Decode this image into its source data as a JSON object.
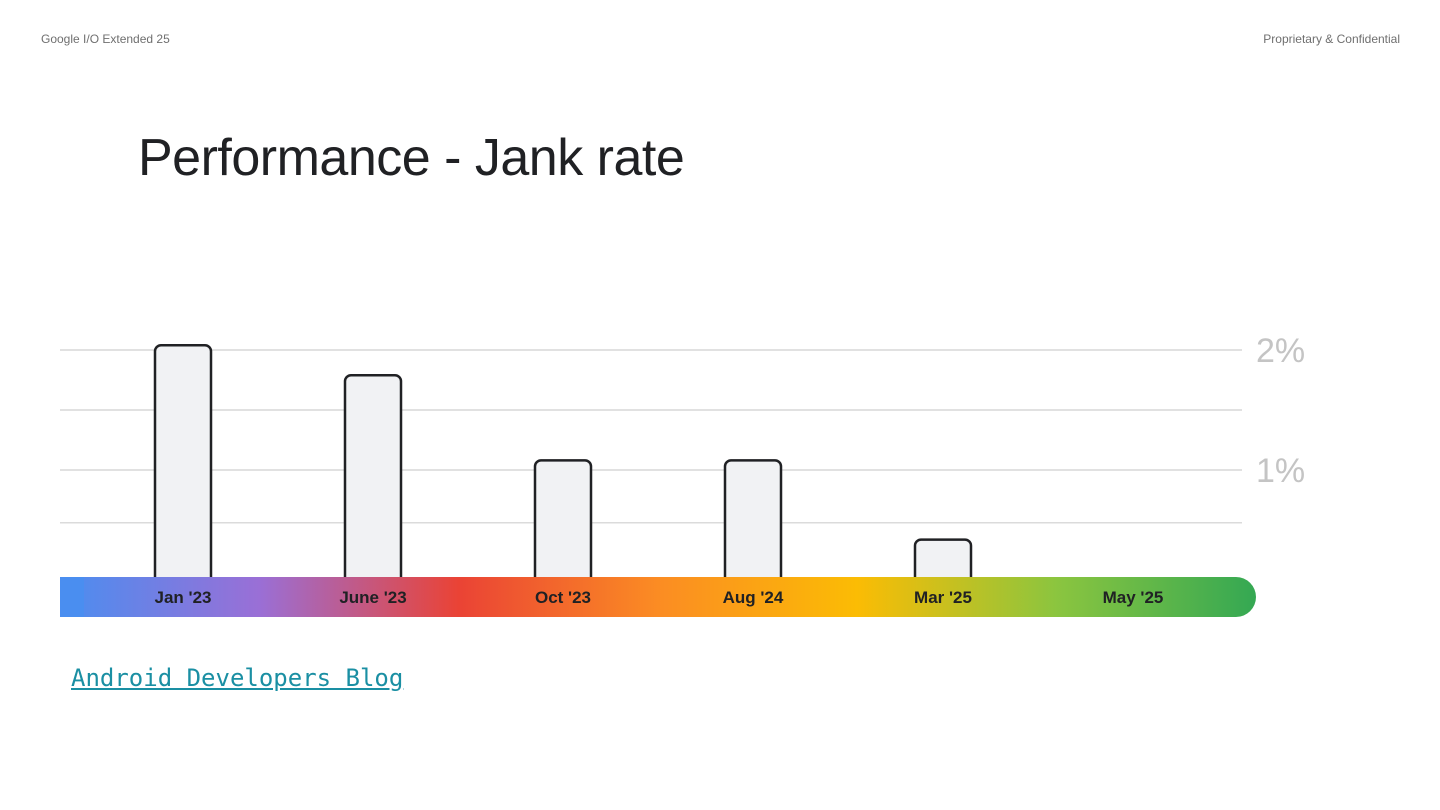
{
  "header": {
    "left_text": "Google I/O Extended 25",
    "right_text": "Proprietary & Confidential"
  },
  "slide": {
    "title": "Performance - Jank rate"
  },
  "source": {
    "link_text": "Android Developers Blog"
  },
  "colors": {
    "bar_fill": "#f1f2f4",
    "bar_stroke": "#202124",
    "gridline": "#cfcfcf",
    "tick_label": "#c4c4c4",
    "category_label": "#202124",
    "gradient": [
      "#4a8ef0",
      "#9a6fd6",
      "#ea4335",
      "#fb8c23",
      "#fbbc04",
      "#8bc53f",
      "#34a853"
    ]
  },
  "chart_data": {
    "type": "bar",
    "categories": [
      "Jan '23",
      "June '23",
      "Oct '23",
      "Aug '24",
      "Mar '25",
      "May '25"
    ],
    "values": [
      2.04,
      1.79,
      1.08,
      1.08,
      0.42,
      0.05
    ],
    "ylim": [
      0,
      2
    ],
    "yticks": [
      {
        "value": 2,
        "label": "2%"
      },
      {
        "value": 1.5,
        "label": ""
      },
      {
        "value": 1,
        "label": "1%"
      },
      {
        "value": 0.56,
        "label": ""
      }
    ],
    "y_unit": "%",
    "title": "",
    "xlabel": "",
    "ylabel": "",
    "grid": true,
    "axis_label_position": "right"
  }
}
